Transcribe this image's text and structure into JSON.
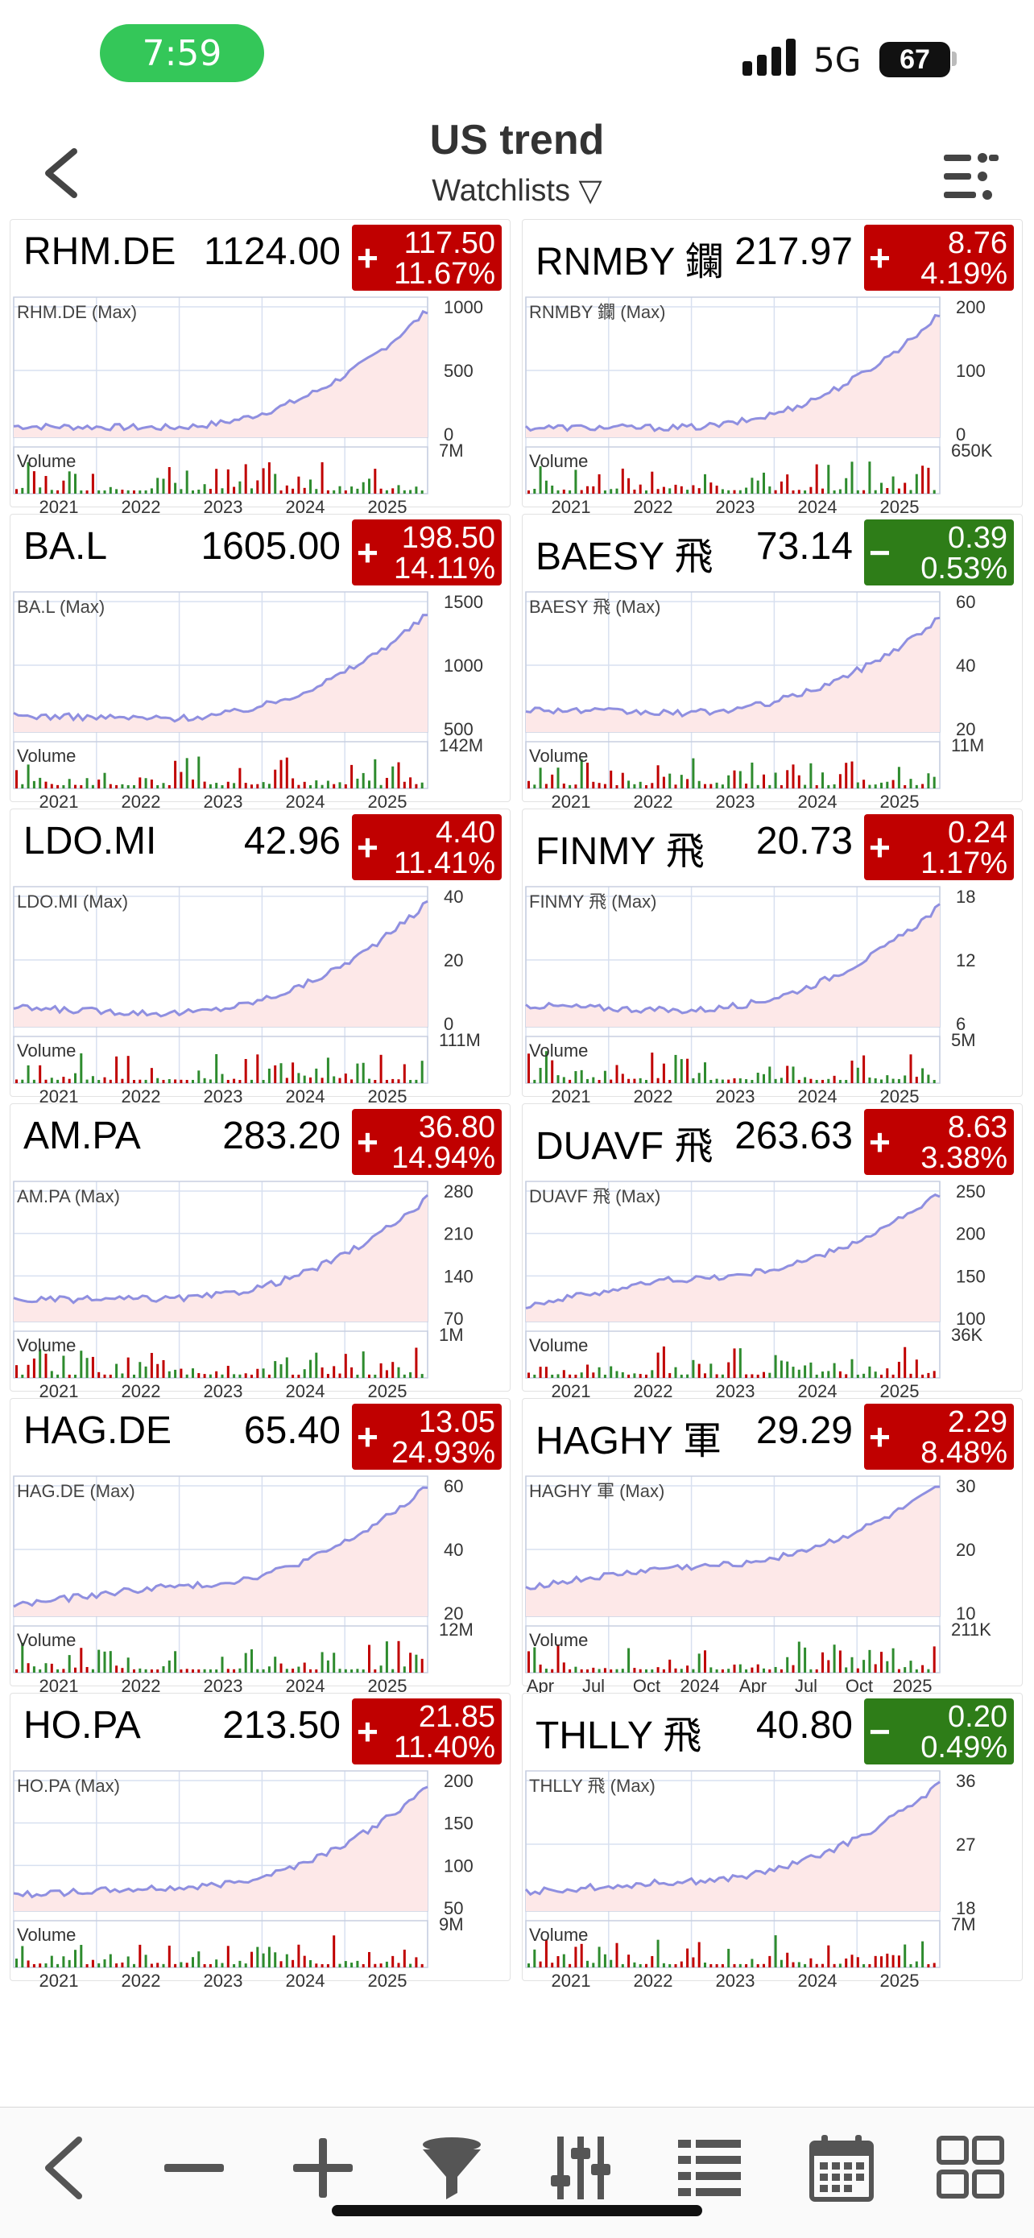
{
  "status": {
    "time": "7:59",
    "network": "5G",
    "battery": "67"
  },
  "header": {
    "title": "US trend",
    "subtitle": "Watchlists ▽"
  },
  "colors": {
    "up": "#c00000",
    "down": "#2e7d18",
    "line": "#8f8fe0",
    "fill": "#fde8e8"
  },
  "cards": [
    {
      "symbol": "RHM.DE",
      "price": "1124.00",
      "direction": "up",
      "sign": "+",
      "chg": "117.50",
      "chg_pct": "11.67%",
      "chart_label": "RHM.DE (Max)",
      "y_ticks": [
        "1000",
        "500",
        "0"
      ],
      "vol_max": "7M",
      "x_labels": [
        "2021",
        "2022",
        "2023",
        "2024",
        "2025"
      ]
    },
    {
      "symbol": "RNMBY 鑭",
      "price": "217.97",
      "direction": "up",
      "sign": "+",
      "chg": "8.76",
      "chg_pct": "4.19%",
      "chart_label": "RNMBY 鑭 (Max)",
      "y_ticks": [
        "200",
        "100",
        "0"
      ],
      "vol_max": "650K",
      "x_labels": [
        "2021",
        "2022",
        "2023",
        "2024",
        "2025"
      ]
    },
    {
      "symbol": "BA.L",
      "price": "1605.00",
      "direction": "up",
      "sign": "+",
      "chg": "198.50",
      "chg_pct": "14.11%",
      "chart_label": "BA.L (Max)",
      "y_ticks": [
        "1500",
        "1000",
        "500"
      ],
      "vol_max": "142M",
      "x_labels": [
        "2021",
        "2022",
        "2023",
        "2024",
        "2025"
      ]
    },
    {
      "symbol": "BAESY 飛",
      "price": "73.14",
      "direction": "down",
      "sign": "−",
      "chg": "0.39",
      "chg_pct": "0.53%",
      "chart_label": "BAESY 飛 (Max)",
      "y_ticks": [
        "60",
        "40",
        "20"
      ],
      "vol_max": "11M",
      "x_labels": [
        "2021",
        "2022",
        "2023",
        "2024",
        "2025"
      ]
    },
    {
      "symbol": "LDO.MI",
      "price": "42.96",
      "direction": "up",
      "sign": "+",
      "chg": "4.40",
      "chg_pct": "11.41%",
      "chart_label": "LDO.MI (Max)",
      "y_ticks": [
        "40",
        "20",
        "0"
      ],
      "vol_max": "111M",
      "x_labels": [
        "2021",
        "2022",
        "2023",
        "2024",
        "2025"
      ]
    },
    {
      "symbol": "FINMY 飛",
      "price": "20.73",
      "direction": "up",
      "sign": "+",
      "chg": "0.24",
      "chg_pct": "1.17%",
      "chart_label": "FINMY 飛 (Max)",
      "y_ticks": [
        "18",
        "12",
        "6"
      ],
      "vol_max": "5M",
      "x_labels": [
        "2021",
        "2022",
        "2023",
        "2024",
        "2025"
      ]
    },
    {
      "symbol": "AM.PA",
      "price": "283.20",
      "direction": "up",
      "sign": "+",
      "chg": "36.80",
      "chg_pct": "14.94%",
      "chart_label": "AM.PA (Max)",
      "y_ticks": [
        "280",
        "210",
        "140",
        "70"
      ],
      "vol_max": "1M",
      "x_labels": [
        "2021",
        "2022",
        "2023",
        "2024",
        "2025"
      ]
    },
    {
      "symbol": "DUAVF 飛",
      "price": "263.63",
      "direction": "up",
      "sign": "+",
      "chg": "8.63",
      "chg_pct": "3.38%",
      "chart_label": "DUAVF 飛 (Max)",
      "y_ticks": [
        "250",
        "200",
        "150",
        "100"
      ],
      "vol_max": "36K",
      "x_labels": [
        "2021",
        "2022",
        "2023",
        "2024",
        "2025"
      ]
    },
    {
      "symbol": "HAG.DE",
      "price": "65.40",
      "direction": "up",
      "sign": "+",
      "chg": "13.05",
      "chg_pct": "24.93%",
      "chart_label": "HAG.DE (Max)",
      "y_ticks": [
        "60",
        "40",
        "20"
      ],
      "vol_max": "12M",
      "x_labels": [
        "2021",
        "2022",
        "2023",
        "2024",
        "2025"
      ]
    },
    {
      "symbol": "HAGHY 軍",
      "price": "29.29",
      "direction": "up",
      "sign": "+",
      "chg": "2.29",
      "chg_pct": "8.48%",
      "chart_label": "HAGHY 軍 (Max)",
      "y_ticks": [
        "30",
        "20",
        "10"
      ],
      "vol_max": "211K",
      "x_labels": [
        "Apr",
        "Jul",
        "Oct",
        "2024",
        "Apr",
        "Jul",
        "Oct",
        "2025"
      ]
    },
    {
      "symbol": "HO.PA",
      "price": "213.50",
      "direction": "up",
      "sign": "+",
      "chg": "21.85",
      "chg_pct": "11.40%",
      "chart_label": "HO.PA (Max)",
      "y_ticks": [
        "200",
        "150",
        "100",
        "50"
      ],
      "vol_max": "9M",
      "x_labels": [
        "2021",
        "2022",
        "2023",
        "2024",
        "2025"
      ]
    },
    {
      "symbol": "THLLY 飛",
      "price": "40.80",
      "direction": "down",
      "sign": "−",
      "chg": "0.20",
      "chg_pct": "0.49%",
      "chart_label": "THLLY 飛 (Max)",
      "y_ticks": [
        "36",
        "27",
        "18"
      ],
      "vol_max": "7M",
      "x_labels": [
        "2021",
        "2022",
        "2023",
        "2024",
        "2025"
      ]
    }
  ],
  "chart_common": {
    "volume_label": "Volume"
  },
  "toolbar": {
    "buttons": [
      "back-icon",
      "minus-icon",
      "plus-icon",
      "filter-icon",
      "sliders-icon",
      "list-icon",
      "calendar-icon",
      "grid-icon"
    ]
  }
}
